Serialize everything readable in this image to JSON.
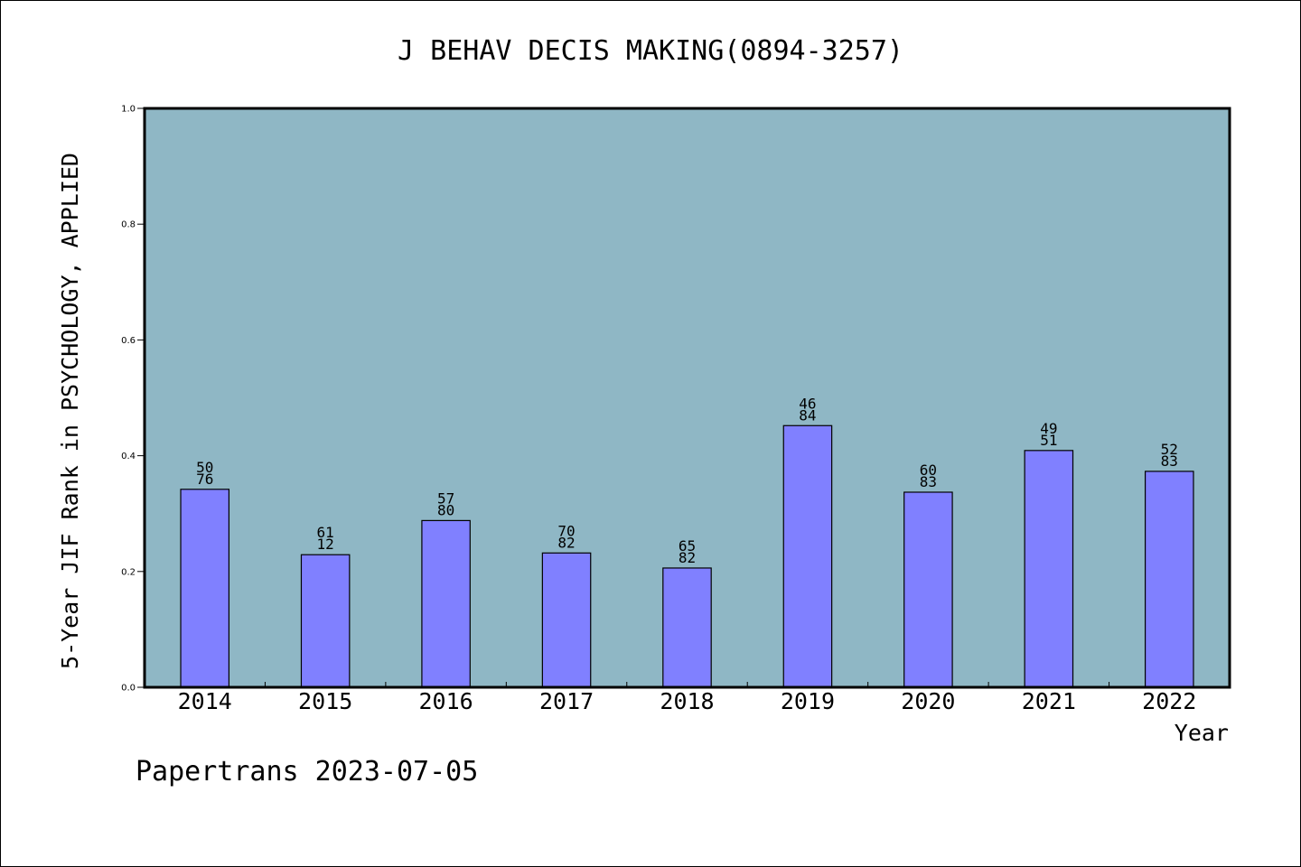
{
  "chart_data": {
    "type": "bar",
    "title": "J BEHAV DECIS MAKING(0894-3257)",
    "xlabel": "Year",
    "ylabel": "5-Year JIF Rank in PSYCHOLOGY, APPLIED",
    "categories": [
      "2014",
      "2015",
      "2016",
      "2017",
      "2018",
      "2019",
      "2020",
      "2021",
      "2022"
    ],
    "values": [
      0.342,
      0.229,
      0.288,
      0.232,
      0.206,
      0.452,
      0.337,
      0.409,
      0.373
    ],
    "bar_labels": [
      "50\n76",
      "61\n12",
      "57\n80",
      "70\n82",
      "65\n82",
      "46\n84",
      "60\n83",
      "49\n51",
      "52\n83"
    ],
    "ylim": [
      0,
      1.0
    ],
    "yticks": [
      "0.0",
      "0.2",
      "0.4",
      "0.6",
      "0.8",
      "1.0"
    ],
    "grid": false,
    "legend": "none",
    "colors": {
      "plot_bg": "#8fb7c5",
      "bar": "#8080ff",
      "bar_edge": "#000000"
    }
  },
  "footer": "Papertrans 2023-07-05"
}
